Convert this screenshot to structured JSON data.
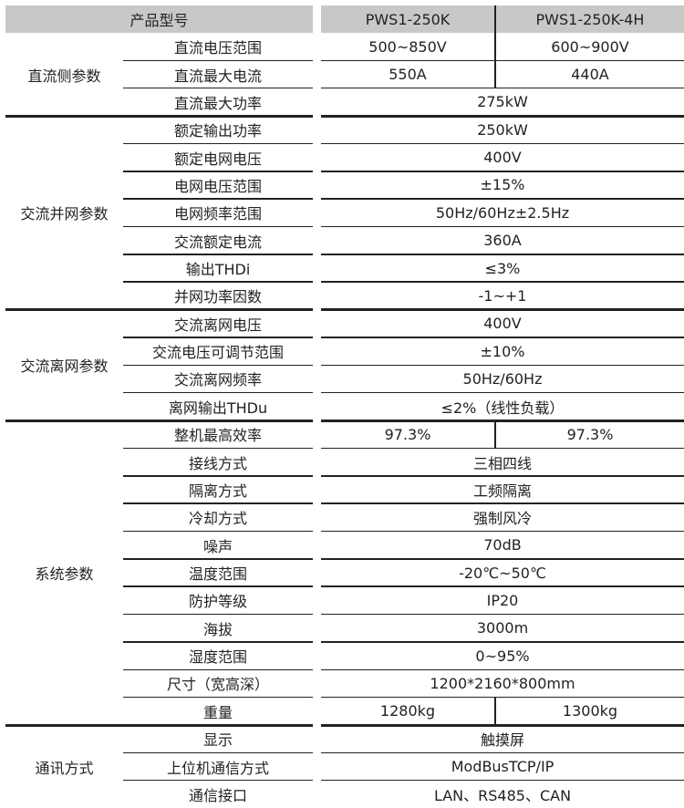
{
  "header": {
    "label": "产品型号",
    "models": [
      "PWS1-250K",
      "PWS1-250K-4H"
    ]
  },
  "groups": [
    {
      "label": "直流侧参数",
      "rows": [
        {
          "param": "直流电压范围",
          "values": [
            "500~850V",
            "600~900V"
          ]
        },
        {
          "param": "直流最大电流",
          "values": [
            "550A",
            "440A"
          ]
        },
        {
          "param": "直流最大功率",
          "values": [
            "275kW"
          ]
        }
      ]
    },
    {
      "label": "交流并网参数",
      "rows": [
        {
          "param": "额定输出功率",
          "values": [
            "250kW"
          ]
        },
        {
          "param": "额定电网电压",
          "values": [
            "400V"
          ]
        },
        {
          "param": "电网电压范围",
          "values": [
            "±15%"
          ]
        },
        {
          "param": "电网频率范围",
          "values": [
            "50Hz/60Hz±2.5Hz"
          ]
        },
        {
          "param": "交流额定电流",
          "values": [
            "360A"
          ]
        },
        {
          "param": "输出THDi",
          "values": [
            "≤3%"
          ]
        },
        {
          "param": "并网功率因数",
          "values": [
            "-1~+1"
          ]
        }
      ]
    },
    {
      "label": "交流离网参数",
      "rows": [
        {
          "param": "交流离网电压",
          "values": [
            "400V"
          ]
        },
        {
          "param": "交流电压可调节范围",
          "values": [
            "±10%"
          ]
        },
        {
          "param": "交流离网频率",
          "values": [
            "50Hz/60Hz"
          ]
        },
        {
          "param": "离网输出THDu",
          "values": [
            "≤2%（线性负载）"
          ]
        }
      ]
    },
    {
      "label": "系统参数",
      "rows": [
        {
          "param": "整机最高效率",
          "values": [
            "97.3%",
            "97.3%"
          ]
        },
        {
          "param": "接线方式",
          "values": [
            "三相四线"
          ]
        },
        {
          "param": "隔离方式",
          "values": [
            "工频隔离"
          ]
        },
        {
          "param": "冷却方式",
          "values": [
            "强制风冷"
          ]
        },
        {
          "param": "噪声",
          "values": [
            "70dB"
          ]
        },
        {
          "param": "温度范围",
          "values": [
            "-20℃~50℃"
          ]
        },
        {
          "param": "防护等级",
          "values": [
            "IP20"
          ]
        },
        {
          "param": "海拔",
          "values": [
            "3000m"
          ]
        },
        {
          "param": "湿度范围",
          "values": [
            "0~95%"
          ]
        },
        {
          "param": "尺寸（宽高深）",
          "values": [
            "1200*2160*800mm"
          ]
        },
        {
          "param": "重量",
          "values": [
            "1280kg",
            "1300kg"
          ]
        }
      ]
    },
    {
      "label": "通讯方式",
      "rows": [
        {
          "param": "显示",
          "values": [
            "触摸屏"
          ]
        },
        {
          "param": "上位机通信方式",
          "values": [
            "ModBusTCP/IP"
          ]
        },
        {
          "param": "通信接口",
          "values": [
            "LAN、RS485、CAN"
          ]
        }
      ]
    }
  ]
}
